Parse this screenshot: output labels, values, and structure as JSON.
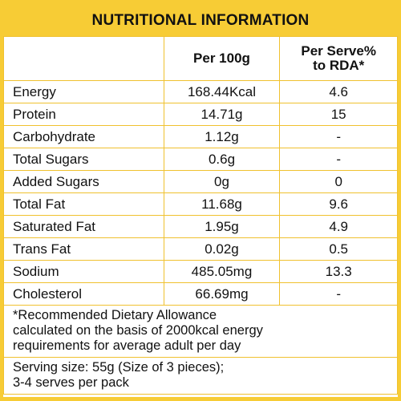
{
  "title": "NUTRITIONAL INFORMATION",
  "columns": {
    "nutrient": "",
    "per100g": "Per 100g",
    "rda_line1": "Per Serve%",
    "rda_line2": "to RDA*"
  },
  "rows": [
    {
      "nutrient": "Energy",
      "per100g": "168.44Kcal",
      "rda": "4.6"
    },
    {
      "nutrient": "Protein",
      "per100g": "14.71g",
      "rda": "15"
    },
    {
      "nutrient": "Carbohydrate",
      "per100g": "1.12g",
      "rda": "-"
    },
    {
      "nutrient": "Total Sugars",
      "per100g": "0.6g",
      "rda": "-"
    },
    {
      "nutrient": "Added Sugars",
      "per100g": "0g",
      "rda": "0"
    },
    {
      "nutrient": "Total Fat",
      "per100g": "11.68g",
      "rda": "9.6"
    },
    {
      "nutrient": "Saturated Fat",
      "per100g": "1.95g",
      "rda": "4.9"
    },
    {
      "nutrient": "Trans Fat",
      "per100g": "0.02g",
      "rda": "0.5"
    },
    {
      "nutrient": "Sodium",
      "per100g": "485.05mg",
      "rda": "13.3"
    },
    {
      "nutrient": "Cholesterol",
      "per100g": "66.69mg",
      "rda": "-"
    }
  ],
  "footnote": {
    "line1": "*Recommended Dietary Allowance",
    "line2": "calculated on the basis of 2000kcal energy",
    "line3": "requirements for average adult per day"
  },
  "serving": {
    "line1": "Serving size: 55g (Size of 3 pieces);",
    "line2": "3-4 serves per pack"
  },
  "colors": {
    "brand_yellow": "#f7cc35",
    "border": "#f0c12f",
    "text": "#111111"
  }
}
